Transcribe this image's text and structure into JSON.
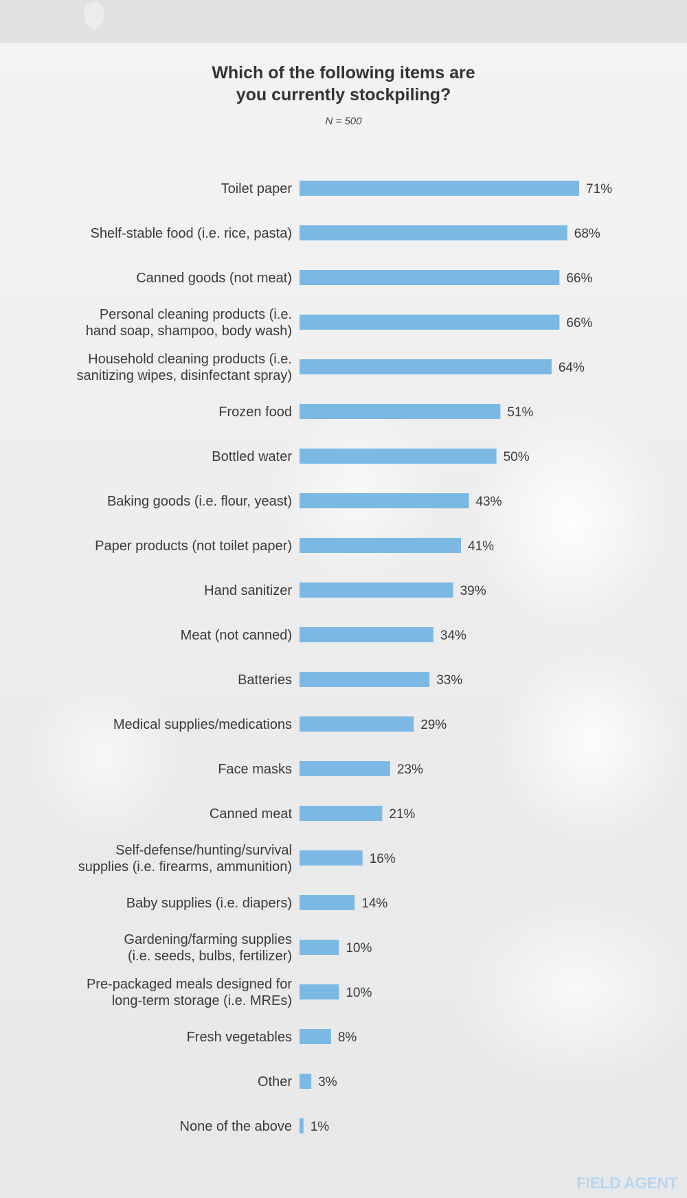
{
  "header": {
    "title_line1": "Which of the following items are",
    "title_line2": "you currently stockpiling?",
    "sample_size": "N = 500"
  },
  "brand": {
    "logo_text": "FIELD AGENT"
  },
  "colors": {
    "bar": "#7bb9e4",
    "text": "#3a3a3a",
    "brand": "#b9d6ee"
  },
  "chart_data": {
    "type": "bar",
    "orientation": "horizontal",
    "title": "Which of the following items are you currently stockpiling?",
    "subtitle": "N = 500",
    "value_suffix": "%",
    "xlim": [
      0,
      71
    ],
    "grid": false,
    "categories": [
      [
        "Toilet paper"
      ],
      [
        "Shelf-stable food (i.e. rice, pasta)"
      ],
      [
        "Canned goods (not meat)"
      ],
      [
        "Personal cleaning products (i.e.",
        "hand soap, shampoo, body wash)"
      ],
      [
        "Household cleaning products (i.e.",
        "sanitizing wipes, disinfectant spray)"
      ],
      [
        "Frozen food"
      ],
      [
        "Bottled water"
      ],
      [
        "Baking goods (i.e. flour, yeast)"
      ],
      [
        "Paper products (not toilet paper)"
      ],
      [
        "Hand sanitizer"
      ],
      [
        "Meat (not canned)"
      ],
      [
        "Batteries"
      ],
      [
        "Medical supplies/medications"
      ],
      [
        "Face masks"
      ],
      [
        "Canned meat"
      ],
      [
        "Self-defense/hunting/survival",
        "supplies (i.e. firearms, ammunition)"
      ],
      [
        "Baby supplies (i.e. diapers)"
      ],
      [
        "Gardening/farming supplies",
        "(i.e. seeds, bulbs, fertilizer)"
      ],
      [
        "Pre-packaged meals designed for",
        "long-term storage (i.e. MREs)"
      ],
      [
        "Fresh vegetables"
      ],
      [
        "Other"
      ],
      [
        "None of the above"
      ]
    ],
    "values": [
      71,
      68,
      66,
      66,
      64,
      51,
      50,
      43,
      41,
      39,
      34,
      33,
      29,
      23,
      21,
      16,
      14,
      10,
      10,
      8,
      3,
      1
    ],
    "data_labels": [
      "71%",
      "68%",
      "66%",
      "66%",
      "64%",
      "51%",
      "50%",
      "43%",
      "41%",
      "39%",
      "34%",
      "33%",
      "29%",
      "23%",
      "21%",
      "16%",
      "14%",
      "10%",
      "10%",
      "8%",
      "3%",
      "1%"
    ]
  }
}
